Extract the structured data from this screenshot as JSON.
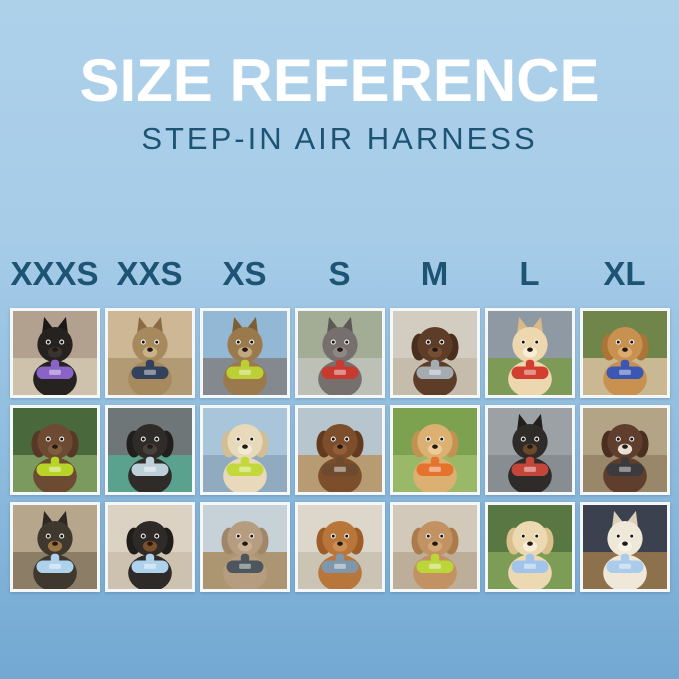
{
  "header": {
    "title": "SIZE REFERENCE",
    "subtitle": "STEP-IN AIR HARNESS"
  },
  "colors": {
    "background_top": "#aed1ea",
    "background_bottom": "#72a8d2",
    "title": "#ffffff",
    "accent": "#1d5474",
    "photo_frame": "#f5f7f8"
  },
  "sizes": [
    "XXXS",
    "XXS",
    "XS",
    "S",
    "M",
    "L",
    "XL"
  ],
  "grid": {
    "rows": [
      {
        "cells": [
          {
            "size": "XXXS",
            "desc": "Black kitten wearing a purple harness indoors",
            "pet": "cat",
            "ears": "pointy",
            "pet_color": "#262220",
            "ear_color": "#1b1816",
            "muzzle_color": "#3a3430",
            "harness_color": "#8a63c6",
            "bg_top": "#b3a190",
            "bg_bottom": "#cec2ad"
          },
          {
            "size": "XXS",
            "desc": "Bengal tabby cat wearing a navy harness by a window",
            "pet": "cat",
            "ears": "pointy",
            "pet_color": "#a7895e",
            "ear_color": "#8a6c44",
            "muzzle_color": "#c9b28a",
            "harness_color": "#32415c",
            "bg_top": "#cdb795",
            "bg_bottom": "#b29a74"
          },
          {
            "size": "XS",
            "desc": "Tabby cat in a car wearing a lime harness",
            "pet": "cat",
            "ears": "pointy",
            "pet_color": "#9a7a4c",
            "ear_color": "#7d5f36",
            "muzzle_color": "#c2a87e",
            "harness_color": "#bccf35",
            "bg_top": "#93b8d6",
            "bg_bottom": "#83898e"
          },
          {
            "size": "S",
            "desc": "Grey French Bulldog wearing a red harness on pavement",
            "pet": "dog",
            "ears": "pointy",
            "pet_color": "#75706d",
            "ear_color": "#5d5855",
            "muzzle_color": "#8d8885",
            "harness_color": "#c8392f",
            "bg_top": "#a3ad96",
            "bg_bottom": "#bcc0b6"
          },
          {
            "size": "M",
            "desc": "Chocolate longhaired Dachshund wearing a grey harness",
            "pet": "dog",
            "ears": "floppy",
            "pet_color": "#5e3d28",
            "ear_color": "#4a2e1d",
            "muzzle_color": "#754e33",
            "harness_color": "#a4abb1",
            "bg_top": "#d3cdc1",
            "bg_bottom": "#c5bcac"
          },
          {
            "size": "L",
            "desc": "Shiba Inu with a red ball wearing a red harness in a field",
            "pet": "dog",
            "ears": "pointy",
            "pet_color": "#ecd7ae",
            "ear_color": "#d9b987",
            "muzzle_color": "#f7ecd6",
            "harness_color": "#d23f30",
            "bg_top": "#8e99a3",
            "bg_bottom": "#7e9a57"
          },
          {
            "size": "XL",
            "desc": "Golden Retriever wearing a blue harness on a boardwalk",
            "pet": "dog",
            "ears": "floppy",
            "pet_color": "#c9914f",
            "ear_color": "#ab7438",
            "muzzle_color": "#dcab6e",
            "harness_color": "#3a57b4",
            "bg_top": "#6f8549",
            "bg_bottom": "#cab893"
          }
        ]
      },
      {
        "cells": [
          {
            "size": "XXXS",
            "desc": "Chocolate dapple puppy wearing a lime green harness in a garden",
            "pet": "dog",
            "ears": "floppy",
            "pet_color": "#6d4b33",
            "ear_color": "#573827",
            "muzzle_color": "#7f5c40",
            "harness_color": "#b8d527",
            "bg_top": "#49683c",
            "bg_bottom": "#7b9a60"
          },
          {
            "size": "XXS",
            "desc": "Black pug puppy wearing a grey-blue harness in a car",
            "pet": "dog",
            "ears": "floppy",
            "pet_color": "#2e2b29",
            "ear_color": "#211f1d",
            "muzzle_color": "#45403c",
            "harness_color": "#bdd0da",
            "bg_top": "#6f7678",
            "bg_bottom": "#5aa18e"
          },
          {
            "size": "XS",
            "desc": "Cream puppy wearing a lime harness by the water",
            "pet": "dog",
            "ears": "floppy",
            "pet_color": "#e7d9ba",
            "ear_color": "#d2bd94",
            "muzzle_color": "#f2e9d3",
            "harness_color": "#c3d83a",
            "bg_top": "#a9c5da",
            "bg_bottom": "#90aabf"
          },
          {
            "size": "S",
            "desc": "Longhaired Dachshund wearing a brown harness on a pier",
            "pet": "dog",
            "ears": "floppy",
            "pet_color": "#7c4e2b",
            "ear_color": "#633a1e",
            "muzzle_color": "#935f37",
            "harness_color": "#6d4b2e",
            "bg_top": "#b6c5ce",
            "bg_bottom": "#b69b73"
          },
          {
            "size": "M",
            "desc": "Smiling golden puppy wearing an orange harness on grass",
            "pet": "dog",
            "ears": "floppy",
            "pet_color": "#dcb071",
            "ear_color": "#c29253",
            "muzzle_color": "#eccb96",
            "harness_color": "#e4732d",
            "bg_top": "#7da24f",
            "bg_bottom": "#99b968"
          },
          {
            "size": "L",
            "desc": "Black and tan dog wearing a red harness inside a metal tunnel",
            "pet": "dog",
            "ears": "pointy",
            "pet_color": "#2f2b28",
            "ear_color": "#221f1c",
            "muzzle_color": "#6b4a2c",
            "harness_color": "#c4463b",
            "bg_top": "#9ba1a5",
            "bg_bottom": "#878d91"
          },
          {
            "size": "XL",
            "desc": "Chocolate and white dog wearing a black harness on a wooden deck",
            "pet": "dog",
            "ears": "floppy",
            "pet_color": "#5f3e2d",
            "ear_color": "#4a2e20",
            "muzzle_color": "#e9e0d2",
            "harness_color": "#3b3b3e",
            "bg_top": "#b4a486",
            "bg_bottom": "#99876a"
          }
        ]
      },
      {
        "cells": [
          {
            "size": "XXXS",
            "desc": "Yorkie puppy wearing a light blue harness on a sunny sidewalk",
            "pet": "dog",
            "ears": "pointy",
            "pet_color": "#3f382f",
            "ear_color": "#2e2823",
            "muzzle_color": "#9a7442",
            "harness_color": "#aed1ec",
            "bg_top": "#b5a68c",
            "bg_bottom": "#8b7d66"
          },
          {
            "size": "XXS",
            "desc": "Black and tan Dachshund wearing a light blue harness on a couch",
            "pet": "dog",
            "ears": "floppy",
            "pet_color": "#2e2a27",
            "ear_color": "#201d1b",
            "muzzle_color": "#7c4f28",
            "harness_color": "#aed1ec",
            "bg_top": "#dbd2c3",
            "bg_bottom": "#cdc1b0"
          },
          {
            "size": "XS",
            "desc": "Taupe poodle puppy wearing a dark grey harness on a boardwalk",
            "pet": "dog",
            "ears": "floppy",
            "pet_color": "#b79d80",
            "ear_color": "#a1876a",
            "muzzle_color": "#c8b195",
            "harness_color": "#4d565d",
            "bg_top": "#c7d1d8",
            "bg_bottom": "#ab9671"
          },
          {
            "size": "S",
            "desc": "Red Dachshund wearing a steel blue harness on a patio",
            "pet": "dog",
            "ears": "floppy",
            "pet_color": "#b8763b",
            "ear_color": "#9e5d28",
            "muzzle_color": "#cb8f55",
            "harness_color": "#7e97ab",
            "bg_top": "#dcd6cb",
            "bg_bottom": "#cbc3b4"
          },
          {
            "size": "M",
            "desc": "Apricot doodle wearing a lime harness on a sidewalk",
            "pet": "dog",
            "ears": "floppy",
            "pet_color": "#c29263",
            "ear_color": "#ac7b4c",
            "muzzle_color": "#d3a878",
            "harness_color": "#bcd63a",
            "bg_top": "#d2c9ba",
            "bg_bottom": "#bcae99"
          },
          {
            "size": "L",
            "desc": "Cream Golden puppy with a blue leash wearing a light blue harness on grass",
            "pet": "dog",
            "ears": "floppy",
            "pet_color": "#ecd9b1",
            "ear_color": "#d9c08c",
            "muzzle_color": "#f6eed9",
            "harness_color": "#a2c4ea",
            "bg_top": "#587742",
            "bg_bottom": "#7d9d56"
          },
          {
            "size": "XL",
            "desc": "White Shepherd wearing a light blue harness on a city street at night",
            "pet": "dog",
            "ears": "pointy",
            "pet_color": "#efe7d7",
            "ear_color": "#dccfb8",
            "muzzle_color": "#f7f2e6",
            "harness_color": "#aacbea",
            "bg_top": "#3c4150",
            "bg_bottom": "#8c714c"
          }
        ]
      }
    ]
  }
}
